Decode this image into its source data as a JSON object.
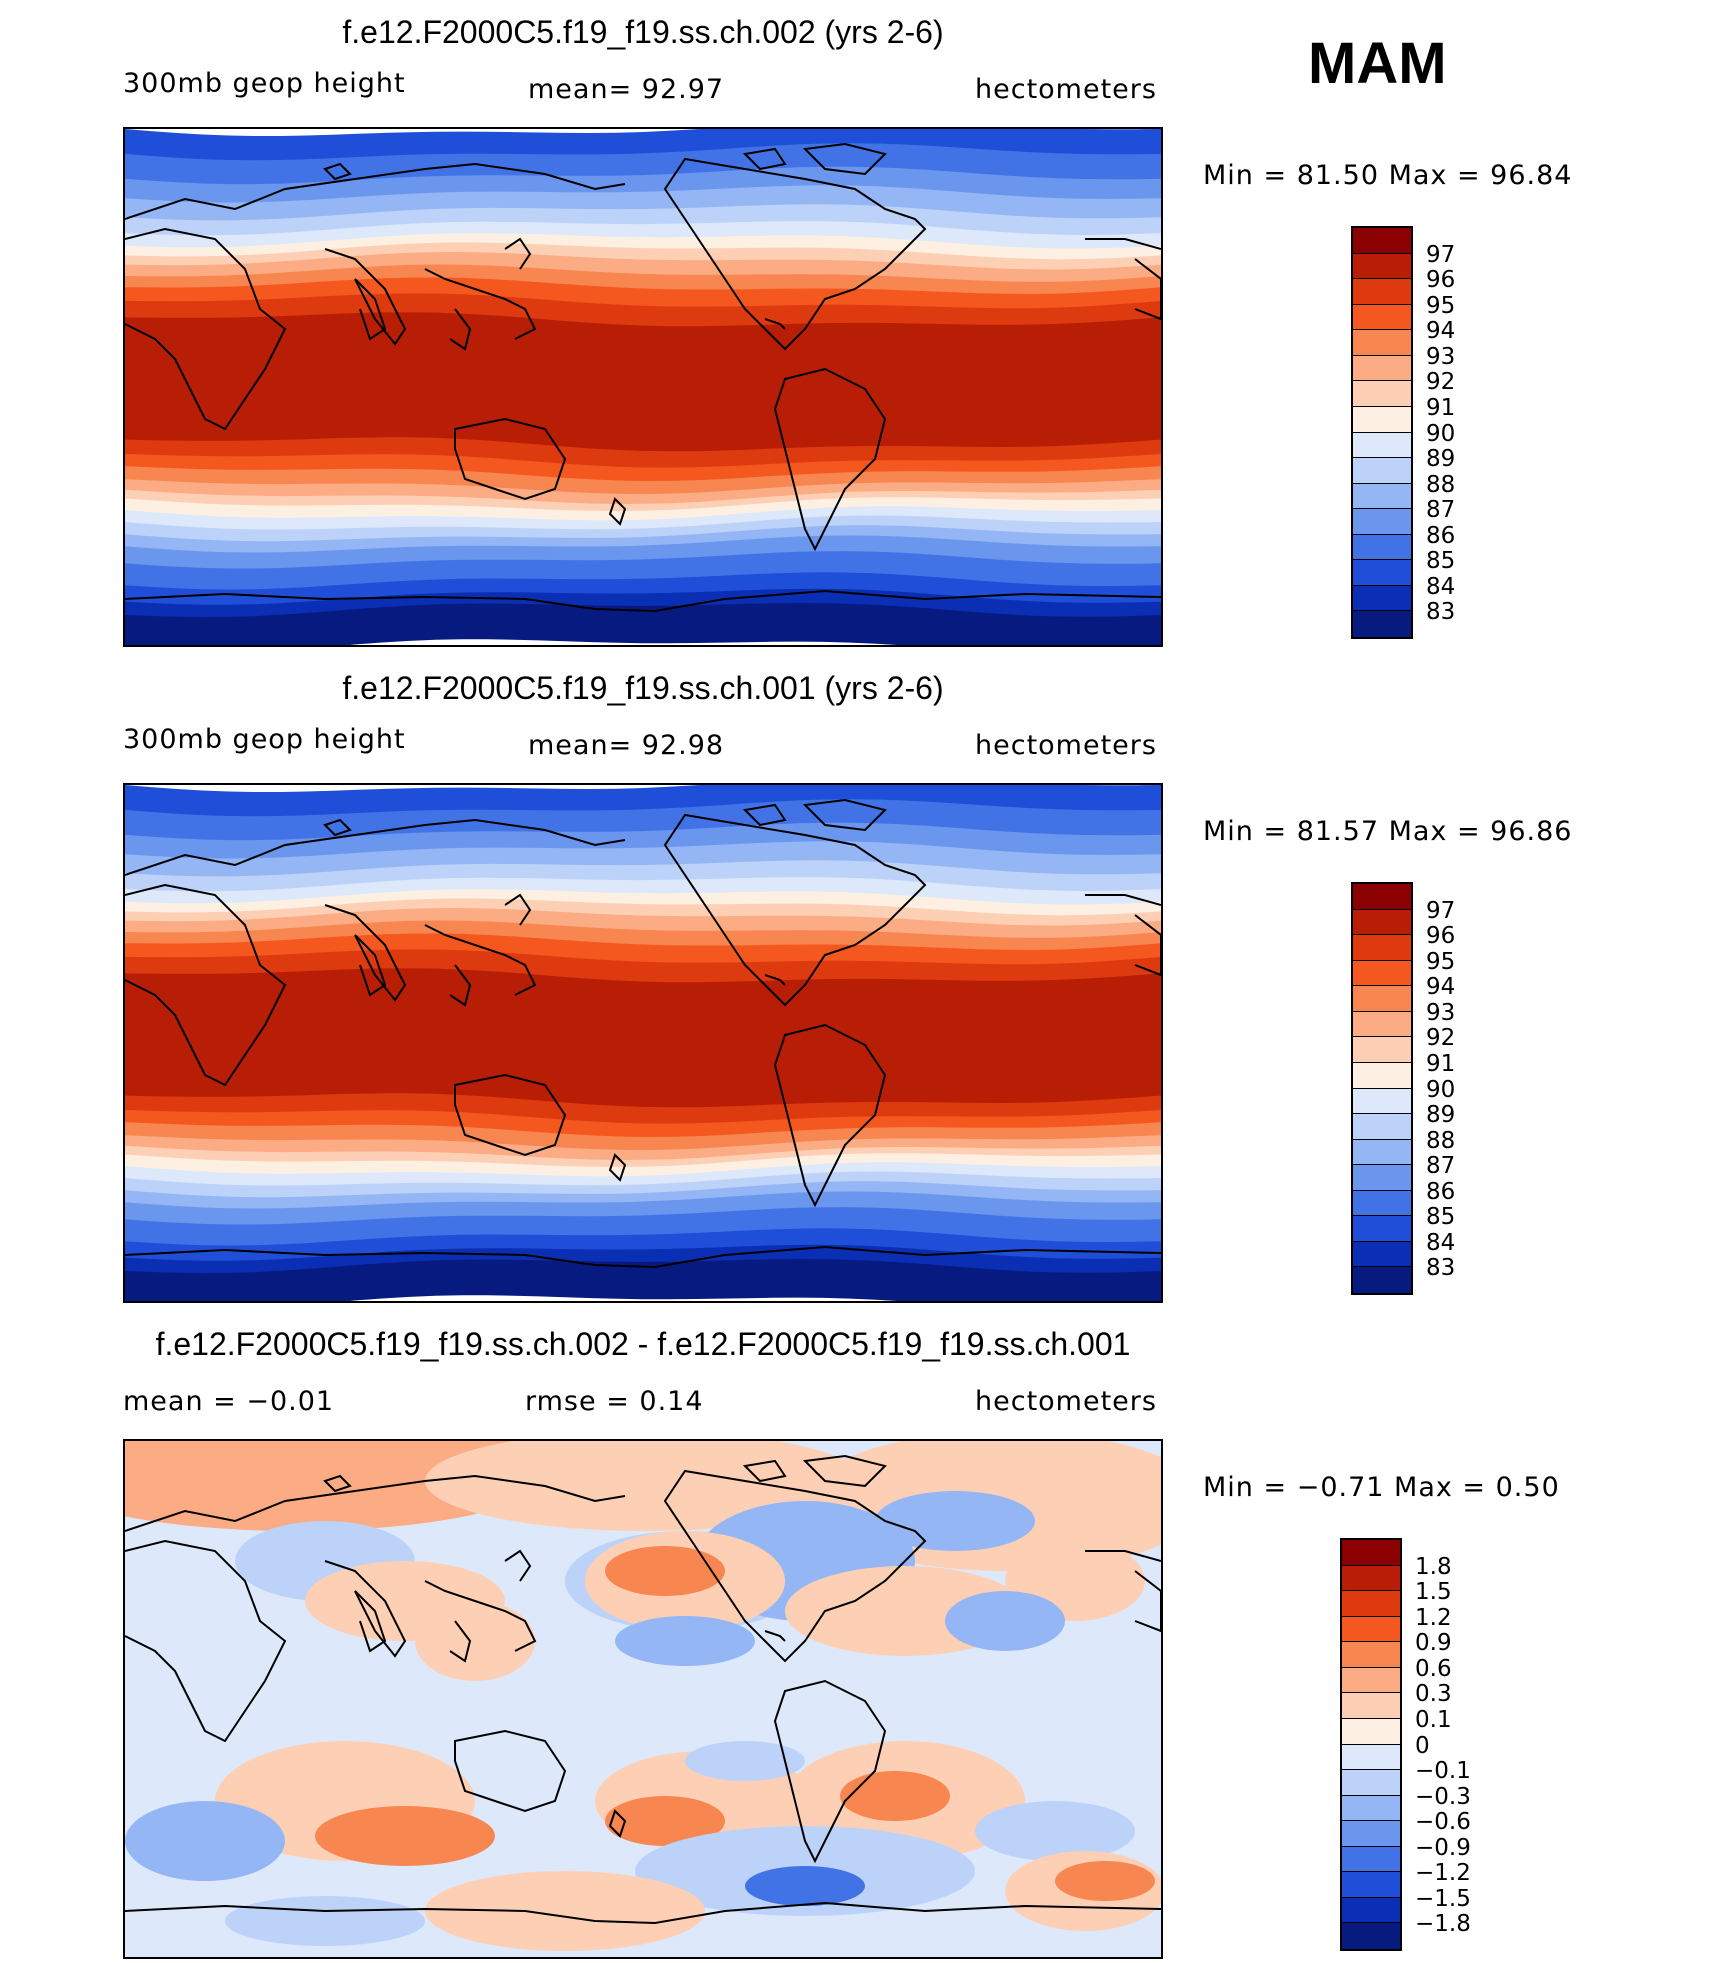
{
  "season": "MAM",
  "panels": [
    {
      "title": "f.e12.F2000C5.f19_f19.ss.ch.002 (yrs 2-6)",
      "variable": "300mb geop height",
      "stat": "mean=   92.97",
      "units": "hectometers",
      "minmax": "Min =   81.50 Max =   96.84",
      "type": "field",
      "min": 81.5,
      "max": 96.84,
      "mean": 92.97
    },
    {
      "title": "f.e12.F2000C5.f19_f19.ss.ch.001 (yrs 2-6)",
      "variable": "300mb geop height",
      "stat": "mean=   92.98",
      "units": "hectometers",
      "minmax": "Min =   81.57 Max =   96.86",
      "type": "field",
      "min": 81.57,
      "max": 96.86,
      "mean": 92.98
    },
    {
      "title": "f.e12.F2000C5.f19_f19.ss.ch.002 - f.e12.F2000C5.f19_f19.ss.ch.001",
      "variable": "mean =   −0.01",
      "stat": "rmse =    0.14",
      "units": "hectometers",
      "minmax": "Min =   −0.71  Max =    0.50",
      "type": "diff",
      "min": -0.71,
      "max": 0.5,
      "mean": -0.01,
      "rmse": 0.14
    }
  ],
  "colorbars": {
    "field": {
      "labels": [
        "97",
        "96",
        "95",
        "94",
        "93",
        "92",
        "91",
        "90",
        "89",
        "88",
        "87",
        "86",
        "85",
        "84",
        "83"
      ],
      "colors": [
        "#8b0000",
        "#b81e06",
        "#dd3a10",
        "#f4581e",
        "#f88650",
        "#fbac84",
        "#fdd0b6",
        "#fdf0e2",
        "#dde9fa",
        "#bcd2f8",
        "#94b6f4",
        "#6a96ee",
        "#4273e6",
        "#1f4fd8",
        "#0b2fb4",
        "#061a80"
      ]
    },
    "diff": {
      "labels": [
        "1.8",
        "1.5",
        "1.2",
        "0.9",
        "0.6",
        "0.3",
        "0.1",
        "0",
        "−0.1",
        "−0.3",
        "−0.6",
        "−0.9",
        "−1.2",
        "−1.5",
        "−1.8"
      ],
      "colors": [
        "#8b0000",
        "#b81e06",
        "#dd3a10",
        "#f4581e",
        "#f88650",
        "#fbac84",
        "#fdd0b6",
        "#fdf0e2",
        "#dde9fa",
        "#bcd2f8",
        "#94b6f4",
        "#6a96ee",
        "#4273e6",
        "#1f4fd8",
        "#0b2fb4",
        "#061a80"
      ]
    }
  },
  "map_layers": [
    "coastlines",
    "filled-contours"
  ]
}
